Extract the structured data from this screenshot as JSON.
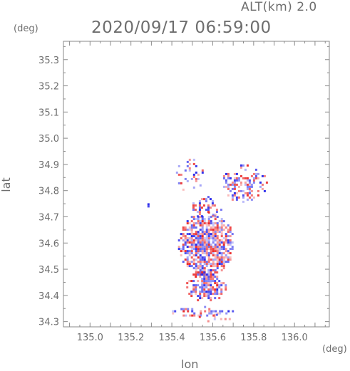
{
  "header": {
    "altitude_label": "ALT(km) 2.0",
    "datetime": "2020/09/17 06:59:00"
  },
  "chart_data": {
    "type": "heatmap",
    "title": "2020/09/17 06:59:00",
    "subtitle": "ALT(km) 2.0",
    "xlabel": "lon",
    "ylabel": "lat",
    "x_unit": "(deg)",
    "y_unit": "(deg)",
    "xlim": [
      134.87,
      136.17
    ],
    "ylim": [
      34.28,
      35.37
    ],
    "x_ticks": [
      135.0,
      135.2,
      135.4,
      135.6,
      135.8,
      136.0
    ],
    "x_tick_labels": [
      "135.0",
      "135.2",
      "135.4",
      "135.6",
      "135.8",
      "136.0"
    ],
    "y_ticks": [
      34.3,
      34.4,
      34.5,
      34.6,
      34.7,
      34.8,
      34.9,
      35.0,
      35.1,
      35.2,
      35.3
    ],
    "y_tick_labels": [
      "34.3",
      "34.4",
      "34.5",
      "34.6",
      "34.7",
      "34.8",
      "34.9",
      "35.0",
      "35.1",
      "35.2",
      "35.3"
    ],
    "grid": false,
    "colors": {
      "positive": "#ee3333",
      "negative": "#3333ee",
      "axis": "#8a8a8a"
    },
    "regions": [
      {
        "lon": [
          135.43,
          135.7
        ],
        "lat": [
          34.48,
          34.72
        ],
        "density": 0.8,
        "seed": 11
      },
      {
        "lon": [
          135.47,
          135.66
        ],
        "lat": [
          34.38,
          34.5
        ],
        "density": 0.65,
        "seed": 23
      },
      {
        "lon": [
          135.49,
          135.64
        ],
        "lat": [
          34.7,
          34.78
        ],
        "density": 0.35,
        "seed": 37
      },
      {
        "lon": [
          135.64,
          135.86
        ],
        "lat": [
          34.76,
          34.9
        ],
        "density": 0.45,
        "seed": 41
      },
      {
        "lon": [
          135.42,
          135.55
        ],
        "lat": [
          34.8,
          34.93
        ],
        "density": 0.18,
        "seed": 53
      },
      {
        "lon": [
          135.39,
          135.7
        ],
        "lat": [
          34.32,
          34.36
        ],
        "density": 0.4,
        "seed": 67
      },
      {
        "lon": [
          135.5,
          135.7
        ],
        "lat": [
          34.3,
          34.33
        ],
        "density": 0.22,
        "seed": 71
      },
      {
        "lon": [
          135.27,
          135.29
        ],
        "lat": [
          34.74,
          34.76
        ],
        "density": 0.9,
        "seed": 83
      }
    ]
  }
}
